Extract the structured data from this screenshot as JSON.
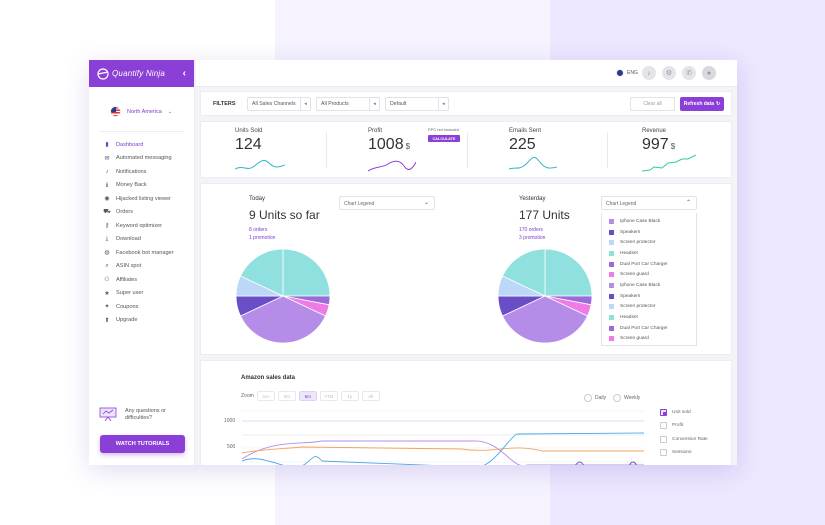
{
  "brand": {
    "name": "Quantify Ninja"
  },
  "region": {
    "label": "North America"
  },
  "nav": [
    {
      "label": "Dashboard",
      "icon": "bar-chart-icon",
      "active": true
    },
    {
      "label": "Automated messaging",
      "icon": "mail-icon"
    },
    {
      "label": "Notifications",
      "icon": "bell-icon"
    },
    {
      "label": "Money Back",
      "icon": "info-icon"
    },
    {
      "label": "Hijacked listing viewer",
      "icon": "eye-icon"
    },
    {
      "label": "Orders",
      "icon": "cart-icon"
    },
    {
      "label": "Keyword optimizer",
      "icon": "key-icon"
    },
    {
      "label": "Download",
      "icon": "download-icon"
    },
    {
      "label": "Facebook bot manager",
      "icon": "chat-icon"
    },
    {
      "label": "ASIN spot",
      "icon": "search-icon"
    },
    {
      "label": "Affiliates",
      "icon": "users-icon"
    },
    {
      "label": "Super user",
      "icon": "star-icon"
    },
    {
      "label": "Coupons",
      "icon": "ticket-icon"
    },
    {
      "label": "Upgrade",
      "icon": "arrow-up-icon"
    }
  ],
  "help": {
    "question": "Any questions or difficulties?",
    "button": "WATCH TUTORIALS"
  },
  "topbar": {
    "lang": "ENG"
  },
  "filters": {
    "label": "FILTERS",
    "channels": "All Sales Channels",
    "products": "All Products",
    "sort": "Default",
    "clear": "Clear all",
    "refresh": "Refresh data"
  },
  "stats": {
    "units": {
      "title": "Units Sold",
      "value": "124"
    },
    "profit": {
      "title": "Profit",
      "value": "1008",
      "unit": "$",
      "ppc": "PPC not included",
      "calc": "CALCULATE"
    },
    "emails": {
      "title": "Emails Sent",
      "value": "225"
    },
    "revenue": {
      "title": "Revenue",
      "value": "997",
      "unit": "$"
    }
  },
  "today": {
    "label": "Today",
    "headline": "9 Units so far",
    "orders": "8 orders",
    "promotion": "1 promotion",
    "legend_select": "Chart Legend"
  },
  "yesterday": {
    "label": "Yesterday",
    "headline": "177 Units",
    "orders": "170 orders",
    "promotion": "3 promotion",
    "legend_select": "Chart Legend"
  },
  "legend_items": [
    {
      "label": "Iphone Case Black",
      "color": "#b58de8"
    },
    {
      "label": "Speakers",
      "color": "#6a4ec8"
    },
    {
      "label": "Screen protector",
      "color": "#bcd7f7"
    },
    {
      "label": "Headset",
      "color": "#8fe0df"
    },
    {
      "label": "Dual Port Car Charger",
      "color": "#9b6bd9"
    },
    {
      "label": "Screen guard",
      "color": "#f07ae6"
    },
    {
      "label": "Iphone Case Black",
      "color": "#b58de8"
    },
    {
      "label": "Speakers",
      "color": "#6a4ec8"
    },
    {
      "label": "Screen protector",
      "color": "#bcd7f7"
    },
    {
      "label": "Headset",
      "color": "#8fe0df"
    },
    {
      "label": "Dual Port Car Charger",
      "color": "#9b6bd9"
    },
    {
      "label": "Screen guard",
      "color": "#f07ae6"
    }
  ],
  "pie_slices": [
    {
      "name": "Headset",
      "value": 25,
      "color": "#8fe0df"
    },
    {
      "name": "Dual Port Car Charger",
      "value": 3,
      "color": "#9b6bd9"
    },
    {
      "name": "Screen guard",
      "value": 4,
      "color": "#f07ae6"
    },
    {
      "name": "Iphone Case Black",
      "value": 36,
      "color": "#b58de8"
    },
    {
      "name": "Speakers",
      "value": 7,
      "color": "#6a4ec8"
    },
    {
      "name": "Screen protector",
      "value": 7,
      "color": "#bcd7f7"
    },
    {
      "name": "Headset",
      "value": 18,
      "color": "#8fe0df"
    }
  ],
  "amazon": {
    "title": "Amazon sales data",
    "zoom_label": "Zoom",
    "zoom": [
      "1m",
      "3m",
      "6m",
      "YTD",
      "1y",
      "All"
    ],
    "zoom_active": "6m",
    "period": [
      "Daily",
      "Weekly"
    ],
    "metrics": [
      "Unit sold",
      "Profit",
      "Conversion Rate",
      "Sessions"
    ],
    "y_ticks": [
      "1000",
      "500"
    ]
  }
}
